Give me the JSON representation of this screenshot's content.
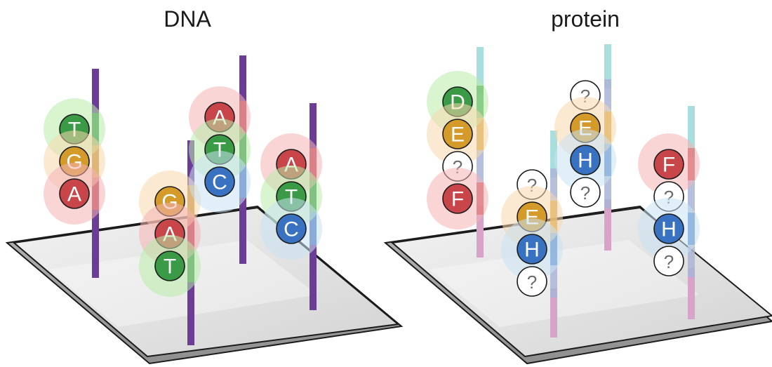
{
  "panels": {
    "dna": {
      "title": "DNA",
      "columns": [
        {
          "beads": [
            "T",
            "G",
            "A"
          ]
        },
        {
          "beads": [
            "G",
            "A",
            "T"
          ]
        },
        {
          "beads": [
            "A",
            "T",
            "C"
          ]
        },
        {
          "beads": [
            "A",
            "T",
            "C"
          ]
        }
      ]
    },
    "protein": {
      "title": "protein",
      "columns": [
        {
          "beads": [
            "D",
            "E",
            "?",
            "F"
          ]
        },
        {
          "beads": [
            "?",
            "E",
            "H",
            "?"
          ]
        },
        {
          "beads": [
            "?",
            "E",
            "H",
            "?"
          ]
        },
        {
          "beads": [
            "F",
            "?",
            "H",
            "?"
          ]
        }
      ]
    }
  },
  "colors": {
    "A": "#c8454a",
    "T": "#3a9a45",
    "G": "#d49a2a",
    "C": "#3a72c2",
    "D": "#3a9a45",
    "E": "#d49a2a",
    "F": "#c8454a",
    "H": "#3a72c2",
    "?": "#ffffff",
    "glow_A": "#f4b3b5",
    "glow_T": "#b8ecaa",
    "glow_G": "#f8d7ad",
    "glow_C": "#c8e1f2",
    "glow_D": "#b8ecaa",
    "glow_E": "#f8d7ad",
    "glow_F": "#f4b3b5",
    "glow_H": "#c8e1f2",
    "rod_dna": "#6b3d96",
    "rod_protein_top": "#a8dede",
    "rod_protein_bottom": "#d7a3c8",
    "plate": "#e8e8e8"
  }
}
